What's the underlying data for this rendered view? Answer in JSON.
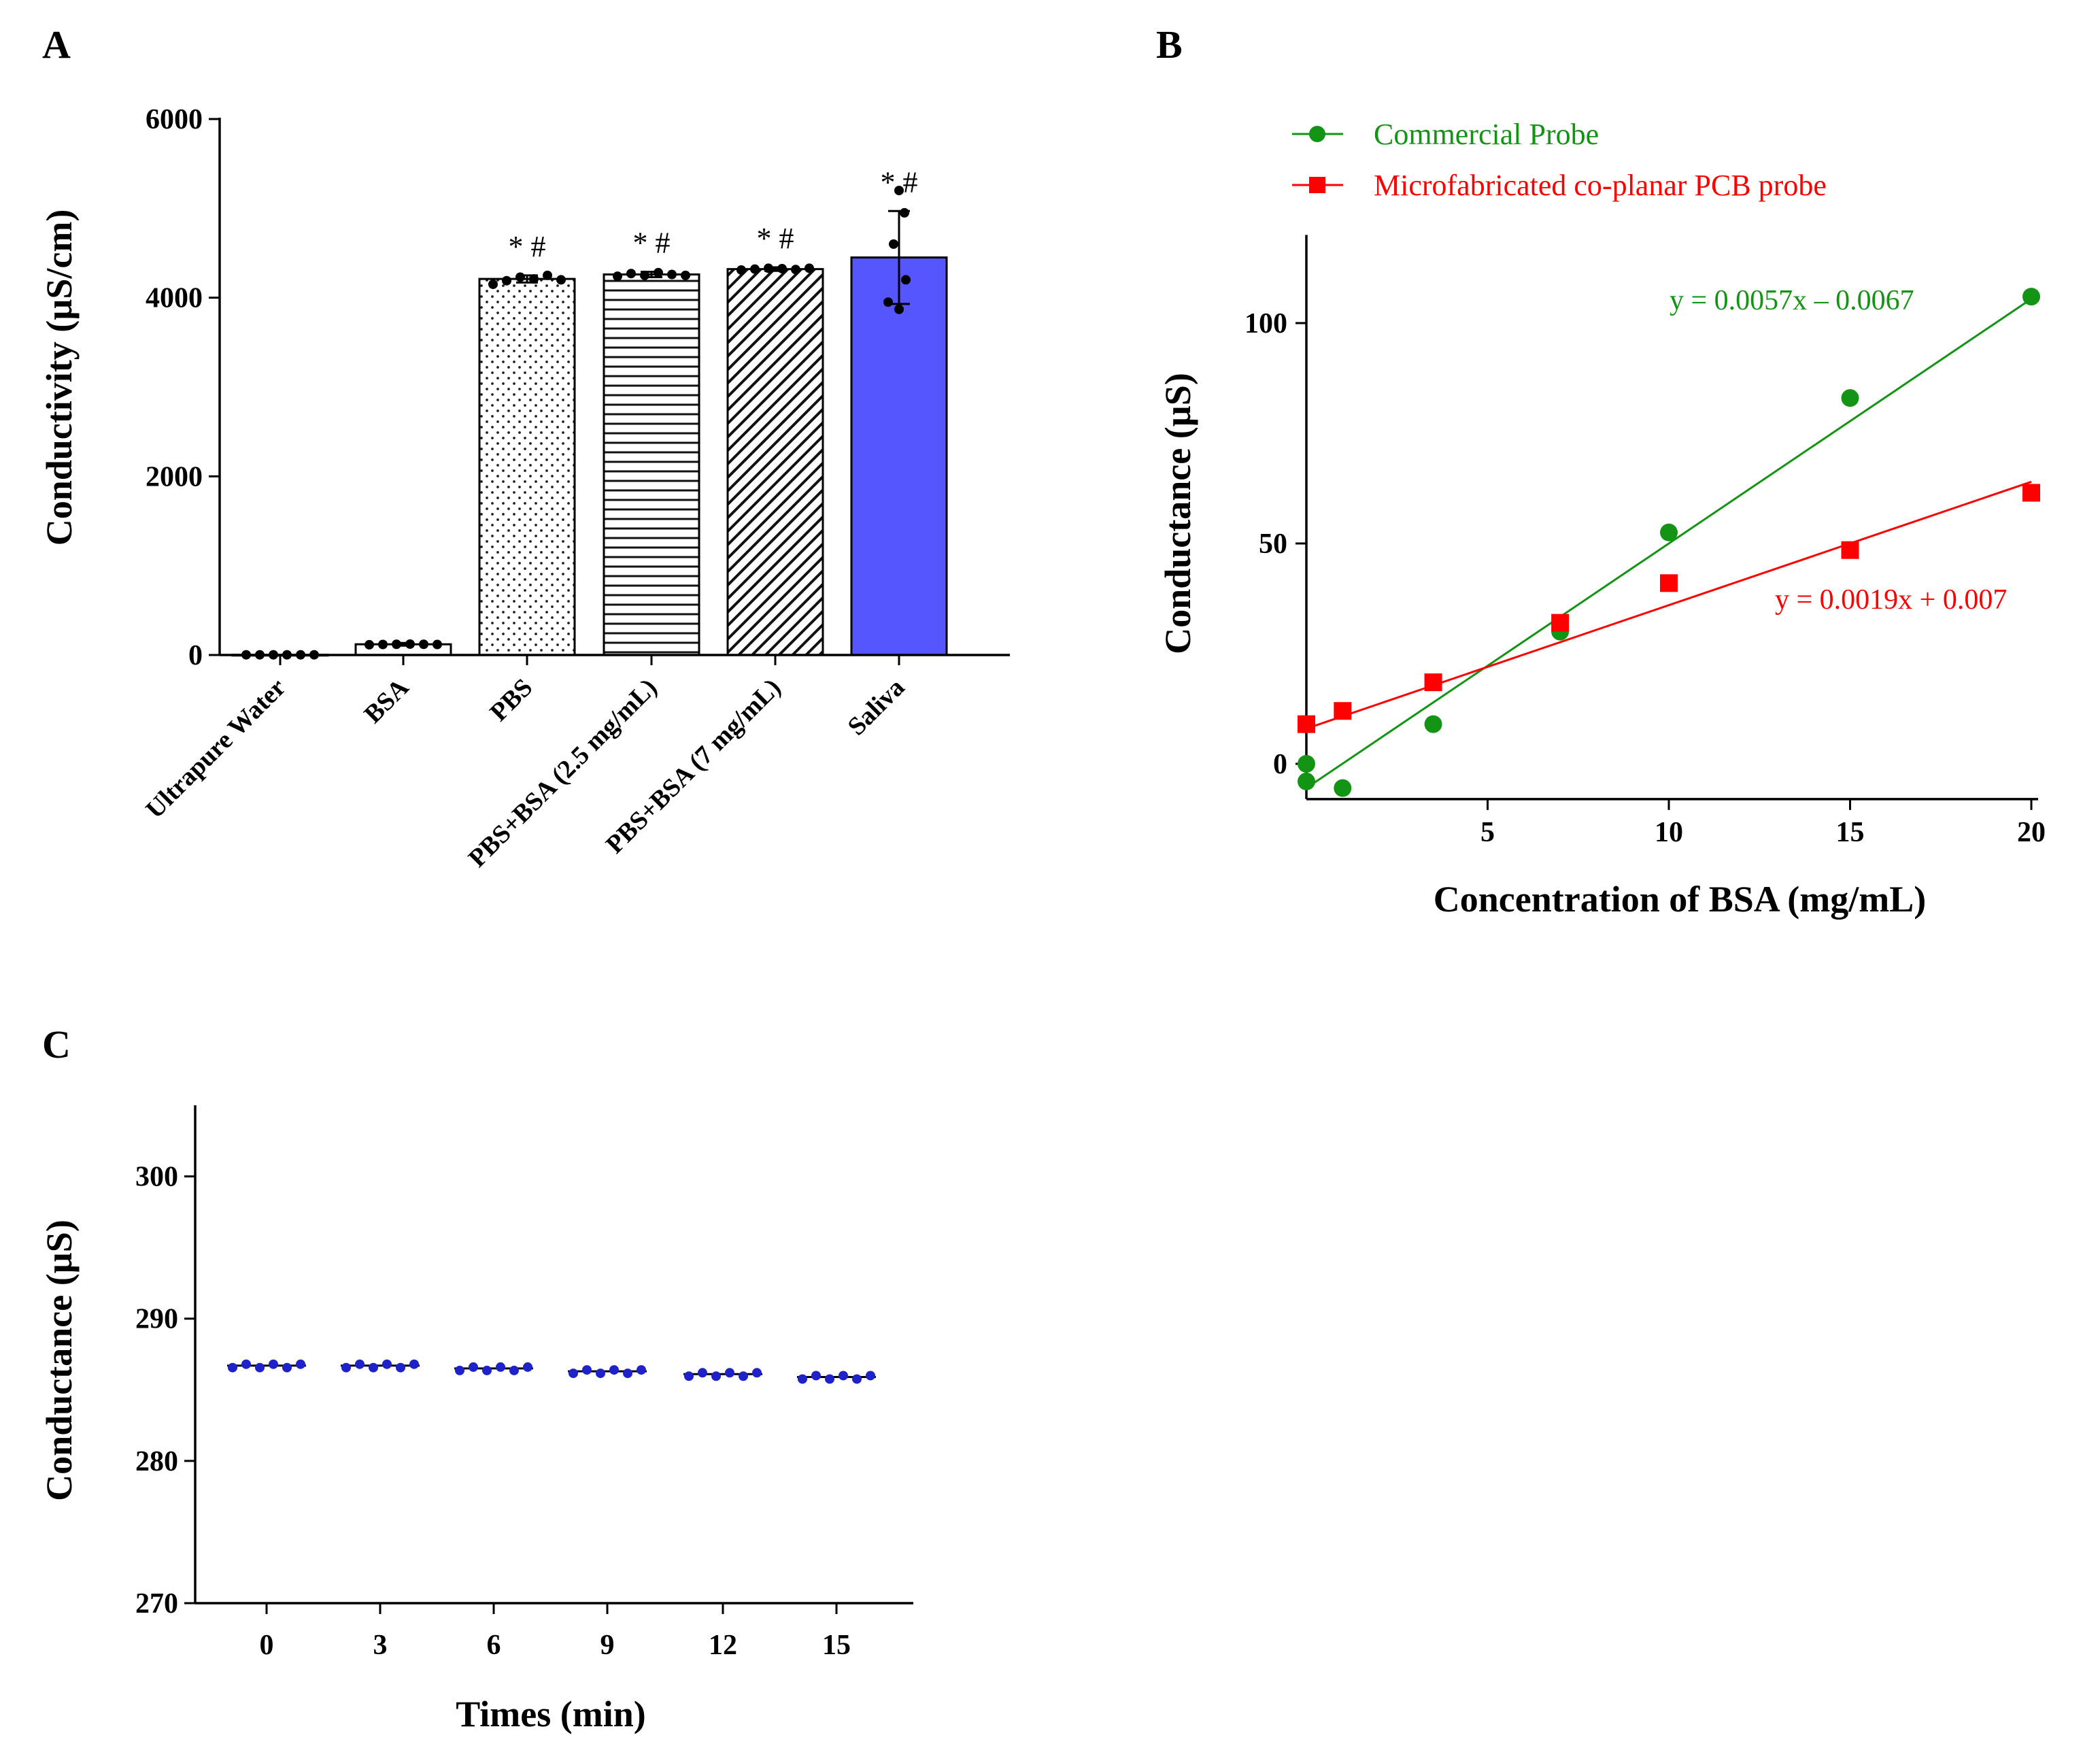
{
  "chart_data": [
    {
      "panel": "A",
      "type": "bar",
      "title": "",
      "xlabel": "",
      "ylabel": "Conductivity (µS/cm)",
      "ylim": [
        0,
        6000
      ],
      "yticks": [
        0,
        2000,
        4000,
        6000
      ],
      "categories": [
        "Ultrapure Water",
        "BSA",
        "PBS",
        "PBS+BSA (2.5 mg/mL)",
        "PBS+BSA (7 mg/mL)",
        "Saliva"
      ],
      "values": [
        2,
        120,
        4210,
        4260,
        4320,
        4450
      ],
      "errors": [
        0,
        15,
        40,
        30,
        20,
        520
      ],
      "points": [
        [
          2,
          2,
          2,
          2,
          2,
          2
        ],
        [
          115,
          118,
          120,
          122,
          120,
          118
        ],
        [
          4150,
          4190,
          4230,
          4210,
          4250,
          4200
        ],
        [
          4240,
          4270,
          4250,
          4280,
          4260,
          4250
        ],
        [
          4310,
          4320,
          4330,
          4325,
          4315,
          4330
        ],
        [
          3870,
          3950,
          4200,
          4600,
          4950,
          5200
        ]
      ],
      "patterns": [
        "none",
        "none",
        "dots",
        "hlines",
        "diag",
        "solid"
      ],
      "bar_fill_color": "#5656ff",
      "annotations": [
        "",
        "",
        "* #",
        "* #",
        "* #",
        "* #"
      ]
    },
    {
      "panel": "B",
      "type": "scatter",
      "xlabel": "Concentration of BSA (mg/mL)",
      "ylabel": "Conductance (µS)",
      "xlim": [
        0,
        20
      ],
      "ylim": [
        -8,
        120
      ],
      "xticks": [
        5,
        10,
        15,
        20
      ],
      "yticks": [
        0,
        50,
        100
      ],
      "legend_position": "top-left",
      "series": [
        {
          "name": "Commercial Probe",
          "color": "#149414",
          "marker": "circle",
          "x": [
            0,
            0,
            1,
            3.5,
            7,
            10,
            15,
            20
          ],
          "y": [
            0,
            -4,
            -5.5,
            9,
            30,
            52.5,
            83,
            106
          ],
          "fit": {
            "slope": 5.55,
            "intercept": -5.5,
            "x_range": [
              0,
              20
            ]
          },
          "equation": "y = 0.0057x – 0.0067"
        },
        {
          "name": "Microfabricated co-planar PCB probe",
          "color": "#ff0000",
          "marker": "square",
          "x": [
            0,
            1,
            3.5,
            7,
            10,
            15,
            20
          ],
          "y": [
            9,
            12,
            18.5,
            32,
            41,
            48.5,
            61.5
          ],
          "fit": {
            "slope": 2.8,
            "intercept": 8,
            "x_range": [
              0,
              20
            ]
          },
          "equation": "y = 0.0019x + 0.007"
        }
      ]
    },
    {
      "panel": "C",
      "type": "scatter",
      "xlabel": "Times (min)",
      "ylabel": "Conductance (µS)",
      "ylim": [
        270,
        305
      ],
      "yticks": [
        270,
        280,
        290,
        300
      ],
      "categories": [
        "0",
        "3",
        "6",
        "9",
        "12",
        "15"
      ],
      "values": [
        286.7,
        286.7,
        286.5,
        286.3,
        286.1,
        285.9
      ],
      "point_color": "#1f22c8"
    }
  ]
}
